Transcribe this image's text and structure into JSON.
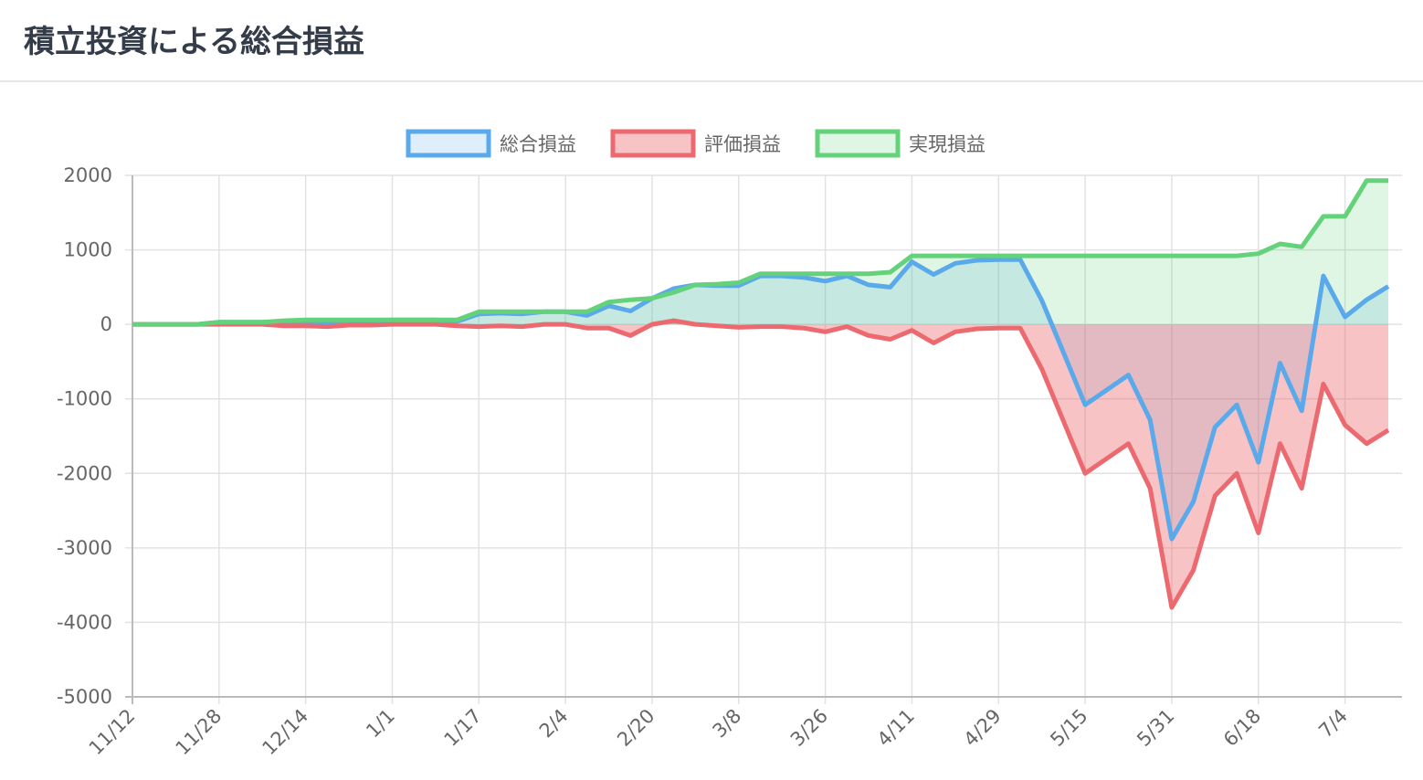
{
  "header": {
    "title": "積立投資による総合損益"
  },
  "chart_data": {
    "type": "area-line",
    "categories": [
      "11/12",
      null,
      null,
      null,
      "11/28",
      null,
      null,
      null,
      "12/14",
      null,
      null,
      null,
      "1/1",
      null,
      null,
      null,
      "1/17",
      null,
      null,
      null,
      "2/4",
      null,
      null,
      null,
      "2/20",
      null,
      null,
      null,
      "3/8",
      null,
      null,
      null,
      "3/26",
      null,
      null,
      null,
      "4/11",
      null,
      null,
      null,
      "4/29",
      null,
      null,
      null,
      "5/15",
      null,
      null,
      null,
      "5/31",
      null,
      null,
      null,
      "6/18",
      null,
      null,
      null,
      "7/4",
      null,
      null
    ],
    "series": [
      {
        "name": "総合損益",
        "color": "#5aa9eb",
        "fill": "rgba(90,169,235,0.2)",
        "values": [
          0,
          0,
          0,
          0,
          30,
          30,
          30,
          30,
          40,
          30,
          50,
          50,
          60,
          60,
          60,
          40,
          140,
          150,
          140,
          170,
          170,
          120,
          250,
          180,
          350,
          480,
          530,
          520,
          520,
          650,
          650,
          630,
          580,
          650,
          530,
          500,
          840,
          670,
          820,
          860,
          870,
          870,
          320,
          -380,
          -1080,
          -880,
          -680,
          -1280,
          -2880,
          -2380,
          -1380,
          -1080,
          -1850,
          -520,
          -1160,
          650,
          100,
          330,
          510
        ]
      },
      {
        "name": "評価損益",
        "color": "#ec6a6f",
        "fill": "rgba(236,106,111,0.4)",
        "values": [
          0,
          0,
          0,
          0,
          0,
          0,
          0,
          -20,
          -20,
          -30,
          -10,
          -10,
          0,
          0,
          0,
          -20,
          -30,
          -20,
          -30,
          0,
          0,
          -50,
          -50,
          -150,
          0,
          50,
          0,
          -20,
          -40,
          -30,
          -30,
          -50,
          -100,
          -30,
          -150,
          -200,
          -80,
          -250,
          -100,
          -60,
          -50,
          -50,
          -600,
          -1300,
          -2000,
          -1800,
          -1600,
          -2200,
          -3800,
          -3300,
          -2300,
          -2000,
          -2800,
          -1600,
          -2200,
          -800,
          -1350,
          -1600,
          -1420
        ]
      },
      {
        "name": "実現損益",
        "color": "#64d27a",
        "fill": "rgba(100,210,122,0.2)",
        "values": [
          0,
          0,
          0,
          0,
          30,
          30,
          30,
          50,
          60,
          60,
          60,
          60,
          60,
          60,
          60,
          60,
          170,
          170,
          170,
          170,
          170,
          170,
          300,
          330,
          350,
          430,
          530,
          540,
          560,
          680,
          680,
          680,
          680,
          680,
          680,
          700,
          920,
          920,
          920,
          920,
          920,
          920,
          920,
          920,
          920,
          920,
          920,
          920,
          920,
          920,
          920,
          920,
          950,
          1080,
          1040,
          1450,
          1450,
          1930,
          1930
        ]
      }
    ],
    "ylim": [
      -5000,
      2000
    ],
    "yticks": [
      2000,
      1000,
      0,
      -1000,
      -2000,
      -3000,
      -4000,
      -5000
    ],
    "grid": true,
    "legend": "top"
  }
}
